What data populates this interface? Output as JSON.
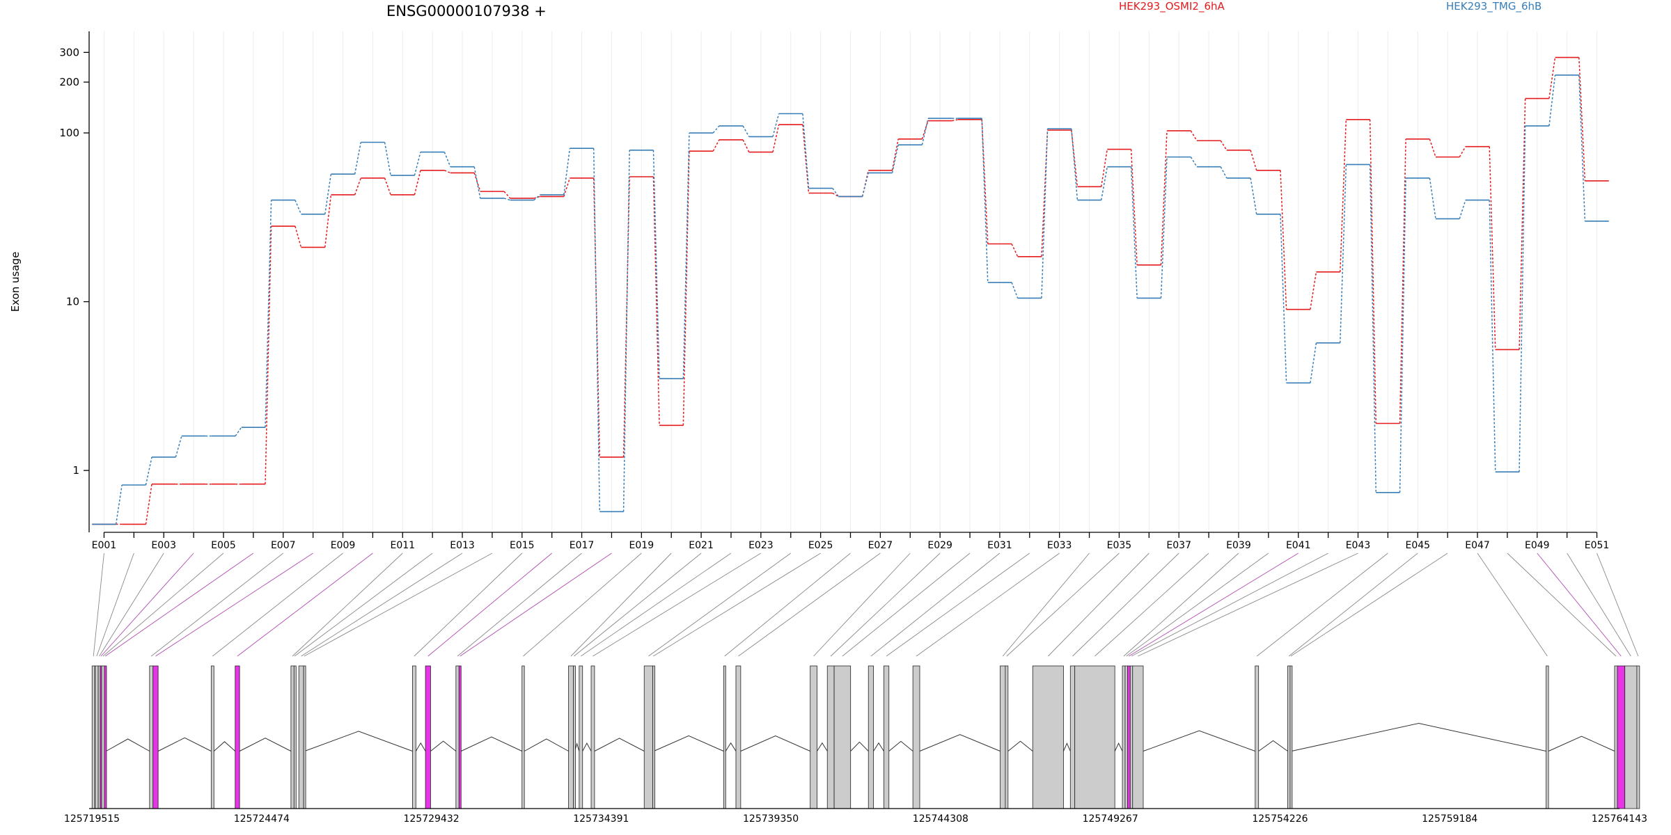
{
  "chart_data": {
    "type": "line",
    "title": "ENSG00000107938 +",
    "ylabel": "Exon usage",
    "yscale": "log",
    "ylim": [
      0.43,
      400
    ],
    "yticks": [
      1,
      10,
      100,
      200,
      300
    ],
    "ytick_labels": [
      "1",
      "10",
      "100",
      "200",
      "300"
    ],
    "x_tick_labels": [
      "E001",
      "E003",
      "E005",
      "E007",
      "E009",
      "E011",
      "E013",
      "E015",
      "E017",
      "E019",
      "E021",
      "E023",
      "E025",
      "E027",
      "E029",
      "E031",
      "E033",
      "E035",
      "E037",
      "E039",
      "E041",
      "E043",
      "E045",
      "E047",
      "E049",
      "E051"
    ],
    "categories": [
      "E001",
      "E002",
      "E003",
      "E004",
      "E005",
      "E006",
      "E007",
      "E008",
      "E009",
      "E010",
      "E011",
      "E012",
      "E013",
      "E014",
      "E015",
      "E016",
      "E017",
      "E018",
      "E019",
      "E020",
      "E021",
      "E022",
      "E023",
      "E024",
      "E025",
      "E026",
      "E027",
      "E028",
      "E029",
      "E030",
      "E031",
      "E032",
      "E033",
      "E034",
      "E035",
      "E036",
      "E037",
      "E038",
      "E039",
      "E040",
      "E041",
      "E042",
      "E043",
      "E044",
      "E045",
      "E046",
      "E047",
      "E048",
      "E049",
      "E050",
      "E051"
    ],
    "series": [
      {
        "name": "HEK293_OSMI2_6hA",
        "color": "#e41a1c",
        "values": [
          0.48,
          0.48,
          0.83,
          0.83,
          0.83,
          0.83,
          28,
          21,
          43,
          54,
          43,
          60,
          58,
          45,
          41,
          42,
          54,
          1.2,
          55,
          1.85,
          78,
          91,
          77,
          112,
          44,
          42,
          60,
          92,
          118,
          120,
          22,
          18.5,
          104,
          48,
          80,
          16.5,
          103,
          90,
          79,
          60,
          9,
          15,
          120,
          1.9,
          92,
          72,
          83,
          5.2,
          160,
          280,
          52
        ],
        "labels": [
          "",
          "",
          "",
          "",
          "",
          "",
          "",
          "",
          "",
          "",
          "",
          "",
          "",
          "",
          "",
          "",
          "",
          "",
          "",
          "",
          "",
          "",
          "",
          "",
          "",
          "",
          "",
          "",
          "",
          "",
          "",
          "",
          "",
          "",
          "",
          "",
          "",
          "",
          "",
          "",
          "",
          "",
          "",
          "",
          "",
          "",
          "",
          "",
          "",
          "",
          ""
        ]
      },
      {
        "name": "HEK293_TMG_6hB",
        "color": "#377eb8",
        "values": [
          0.48,
          0.82,
          1.2,
          1.6,
          1.6,
          1.8,
          40,
          33,
          57,
          88,
          56,
          77,
          63,
          41,
          40,
          43,
          81,
          0.57,
          79,
          3.5,
          100,
          110,
          95,
          130,
          47,
          42,
          58,
          85,
          122,
          122,
          13,
          10.5,
          106,
          40,
          63,
          10.5,
          72,
          63,
          54,
          33,
          3.3,
          5.7,
          65,
          0.74,
          54,
          31,
          40,
          0.98,
          110,
          220,
          30
        ],
        "labels": [
          "",
          "",
          "",
          "",
          "",
          "",
          "",
          "",
          "",
          "",
          "",
          "",
          "",
          "",
          "",
          "",
          "",
          "",
          "",
          "",
          "",
          "",
          "",
          "",
          "",
          "",
          "",
          "",
          "",
          "",
          "",
          "",
          "",
          "",
          "",
          "",
          "",
          "",
          "",
          "",
          "",
          "",
          "",
          "",
          "",
          "",
          "",
          "",
          "",
          "",
          ""
        ]
      }
    ],
    "genome_ticks": [
      "125719515",
      "125724474",
      "125729432",
      "125734391",
      "125739350",
      "125744308",
      "125749267",
      "125754226",
      "125759184",
      "125764143"
    ],
    "genome_range": [
      125719515,
      125764143
    ],
    "exon_color": "#cccccc",
    "highlight_color": "#e535e5",
    "exons": [
      {
        "id": "E001",
        "start": 125719520,
        "end": 125719600,
        "hl": false
      },
      {
        "id": "E002",
        "start": 125719610,
        "end": 125719700,
        "hl": false
      },
      {
        "id": "E003",
        "start": 125719700,
        "end": 125719760,
        "hl": false
      },
      {
        "id": "E004",
        "start": 125719760,
        "end": 125719800,
        "hl": true
      },
      {
        "id": "E005",
        "start": 125719800,
        "end": 125719880,
        "hl": false
      },
      {
        "id": "E006",
        "start": 125719880,
        "end": 125719930,
        "hl": true
      },
      {
        "id": "E007",
        "start": 125721200,
        "end": 125721300,
        "hl": false
      },
      {
        "id": "E008",
        "start": 125721300,
        "end": 125721450,
        "hl": true
      },
      {
        "id": "E009",
        "start": 125723000,
        "end": 125723080,
        "hl": false
      },
      {
        "id": "E010",
        "start": 125723700,
        "end": 125723830,
        "hl": true
      },
      {
        "id": "E011",
        "start": 125725330,
        "end": 125725420,
        "hl": false
      },
      {
        "id": "E012",
        "start": 125725420,
        "end": 125725450,
        "hl": false
      },
      {
        "id": "E013",
        "start": 125725560,
        "end": 125725700,
        "hl": false
      },
      {
        "id": "E014",
        "start": 125725700,
        "end": 125725730,
        "hl": false
      },
      {
        "id": "E015",
        "start": 125728880,
        "end": 125728980,
        "hl": false
      },
      {
        "id": "E016",
        "start": 125729260,
        "end": 125729410,
        "hl": true
      },
      {
        "id": "E017",
        "start": 125730150,
        "end": 125730240,
        "hl": false
      },
      {
        "id": "E018",
        "start": 125730240,
        "end": 125730300,
        "hl": true
      },
      {
        "id": "E019",
        "start": 125732080,
        "end": 125732150,
        "hl": false
      },
      {
        "id": "E020",
        "start": 125733440,
        "end": 125733580,
        "hl": false
      },
      {
        "id": "E021",
        "start": 125733580,
        "end": 125733620,
        "hl": false
      },
      {
        "id": "E022",
        "start": 125733750,
        "end": 125733850,
        "hl": false
      },
      {
        "id": "E023",
        "start": 125734100,
        "end": 125734200,
        "hl": false
      },
      {
        "id": "E024",
        "start": 125735650,
        "end": 125735900,
        "hl": false
      },
      {
        "id": "E025",
        "start": 125735900,
        "end": 125735930,
        "hl": false
      },
      {
        "id": "E026",
        "start": 125737970,
        "end": 125738030,
        "hl": false
      },
      {
        "id": "E027",
        "start": 125738330,
        "end": 125738470,
        "hl": false
      },
      {
        "id": "E028",
        "start": 125740500,
        "end": 125740700,
        "hl": false
      },
      {
        "id": "E029",
        "start": 125741000,
        "end": 125741200,
        "hl": false
      },
      {
        "id": "E030",
        "start": 125741200,
        "end": 125741680,
        "hl": false
      },
      {
        "id": "E031",
        "start": 125742200,
        "end": 125742350,
        "hl": false
      },
      {
        "id": "E032",
        "start": 125742650,
        "end": 125742800,
        "hl": false
      },
      {
        "id": "E033",
        "start": 125743500,
        "end": 125743700,
        "hl": false
      },
      {
        "id": "E034",
        "start": 125746050,
        "end": 125746200,
        "hl": false
      },
      {
        "id": "E035",
        "start": 125746200,
        "end": 125746280,
        "hl": false
      },
      {
        "id": "E036",
        "start": 125747000,
        "end": 125747900,
        "hl": false
      },
      {
        "id": "E037",
        "start": 125748100,
        "end": 125748230,
        "hl": false
      },
      {
        "id": "E038",
        "start": 125748230,
        "end": 125749400,
        "hl": false
      },
      {
        "id": "E039",
        "start": 125749620,
        "end": 125749700,
        "hl": false
      },
      {
        "id": "E040",
        "start": 125749700,
        "end": 125749770,
        "hl": false
      },
      {
        "id": "E041",
        "start": 125749770,
        "end": 125749850,
        "hl": true
      },
      {
        "id": "E042",
        "start": 125749850,
        "end": 125749920,
        "hl": false
      },
      {
        "id": "E043",
        "start": 125749920,
        "end": 125750230,
        "hl": false
      },
      {
        "id": "E044",
        "start": 125753500,
        "end": 125753600,
        "hl": false
      },
      {
        "id": "E045",
        "start": 125754450,
        "end": 125754520,
        "hl": false
      },
      {
        "id": "E046",
        "start": 125754520,
        "end": 125754560,
        "hl": false
      },
      {
        "id": "E047",
        "start": 125762000,
        "end": 125762070,
        "hl": false
      },
      {
        "id": "E048",
        "start": 125764000,
        "end": 125764080,
        "hl": false
      },
      {
        "id": "E049",
        "start": 125764080,
        "end": 125764300,
        "hl": true
      },
      {
        "id": "E050",
        "start": 125764300,
        "end": 125764650,
        "hl": false
      },
      {
        "id": "E051",
        "start": 125764650,
        "end": 125764730,
        "hl": false
      }
    ]
  }
}
